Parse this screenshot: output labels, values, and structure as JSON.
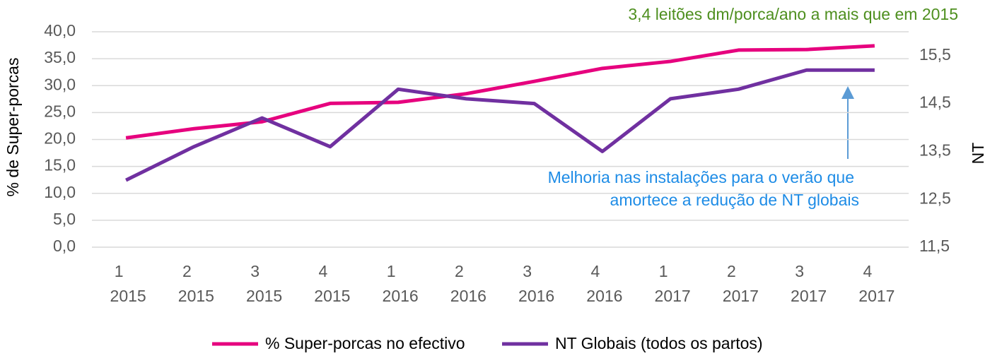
{
  "chart_data": {
    "type": "line",
    "annotations": [
      "3,4 leitões dm/porca/ano a mais que em 2015",
      "Melhoria nas instalações para o verão que",
      "amortece a redução de NT globais"
    ],
    "ylabel": "% de Super-porcas",
    "y2label": "NT",
    "categories": [
      [
        "1",
        "2015"
      ],
      [
        "2",
        "2015"
      ],
      [
        "3",
        "2015"
      ],
      [
        "4",
        "2015"
      ],
      [
        "1",
        "2016"
      ],
      [
        "2",
        "2016"
      ],
      [
        "3",
        "2016"
      ],
      [
        "4",
        "2016"
      ],
      [
        "1",
        "2017"
      ],
      [
        "2",
        "2017"
      ],
      [
        "3",
        "2017"
      ],
      [
        "4",
        "2017"
      ]
    ],
    "series": [
      {
        "name": "% Super-porcas no efectivo",
        "color": "#e6007e",
        "values": [
          20.3,
          22.0,
          23.3,
          26.7,
          26.9,
          28.5,
          30.8,
          33.2,
          34.5,
          36.6,
          36.7,
          37.4
        ]
      },
      {
        "name": "NT Globais (todos os partos)",
        "color": "#7030a0",
        "axis": "y2",
        "values": [
          12.9,
          13.6,
          14.2,
          13.6,
          14.8,
          14.6,
          14.5,
          13.5,
          14.6,
          14.8,
          15.2,
          15.2
        ]
      }
    ],
    "ylim": [
      0,
      40
    ],
    "yticks": [
      {
        "value": 0,
        "label": "0,0"
      },
      {
        "value": 5,
        "label": "5,0"
      },
      {
        "value": 10,
        "label": "10,0"
      },
      {
        "value": 15,
        "label": "15,0"
      },
      {
        "value": 20,
        "label": "20,0"
      },
      {
        "value": 25,
        "label": "25,0"
      },
      {
        "value": 30,
        "label": "30,0"
      },
      {
        "value": 35,
        "label": "35,0"
      },
      {
        "value": 40,
        "label": "40,0"
      }
    ],
    "y2lim": [
      11.5,
      16
    ],
    "y2ticks": [
      {
        "value": 11.5,
        "label": "11,5"
      },
      {
        "value": 12.5,
        "label": "12,5"
      },
      {
        "value": 13.5,
        "label": "13,5"
      },
      {
        "value": 14.5,
        "label": "14,5"
      },
      {
        "value": 15.5,
        "label": "15,5"
      }
    ],
    "grid": true
  }
}
